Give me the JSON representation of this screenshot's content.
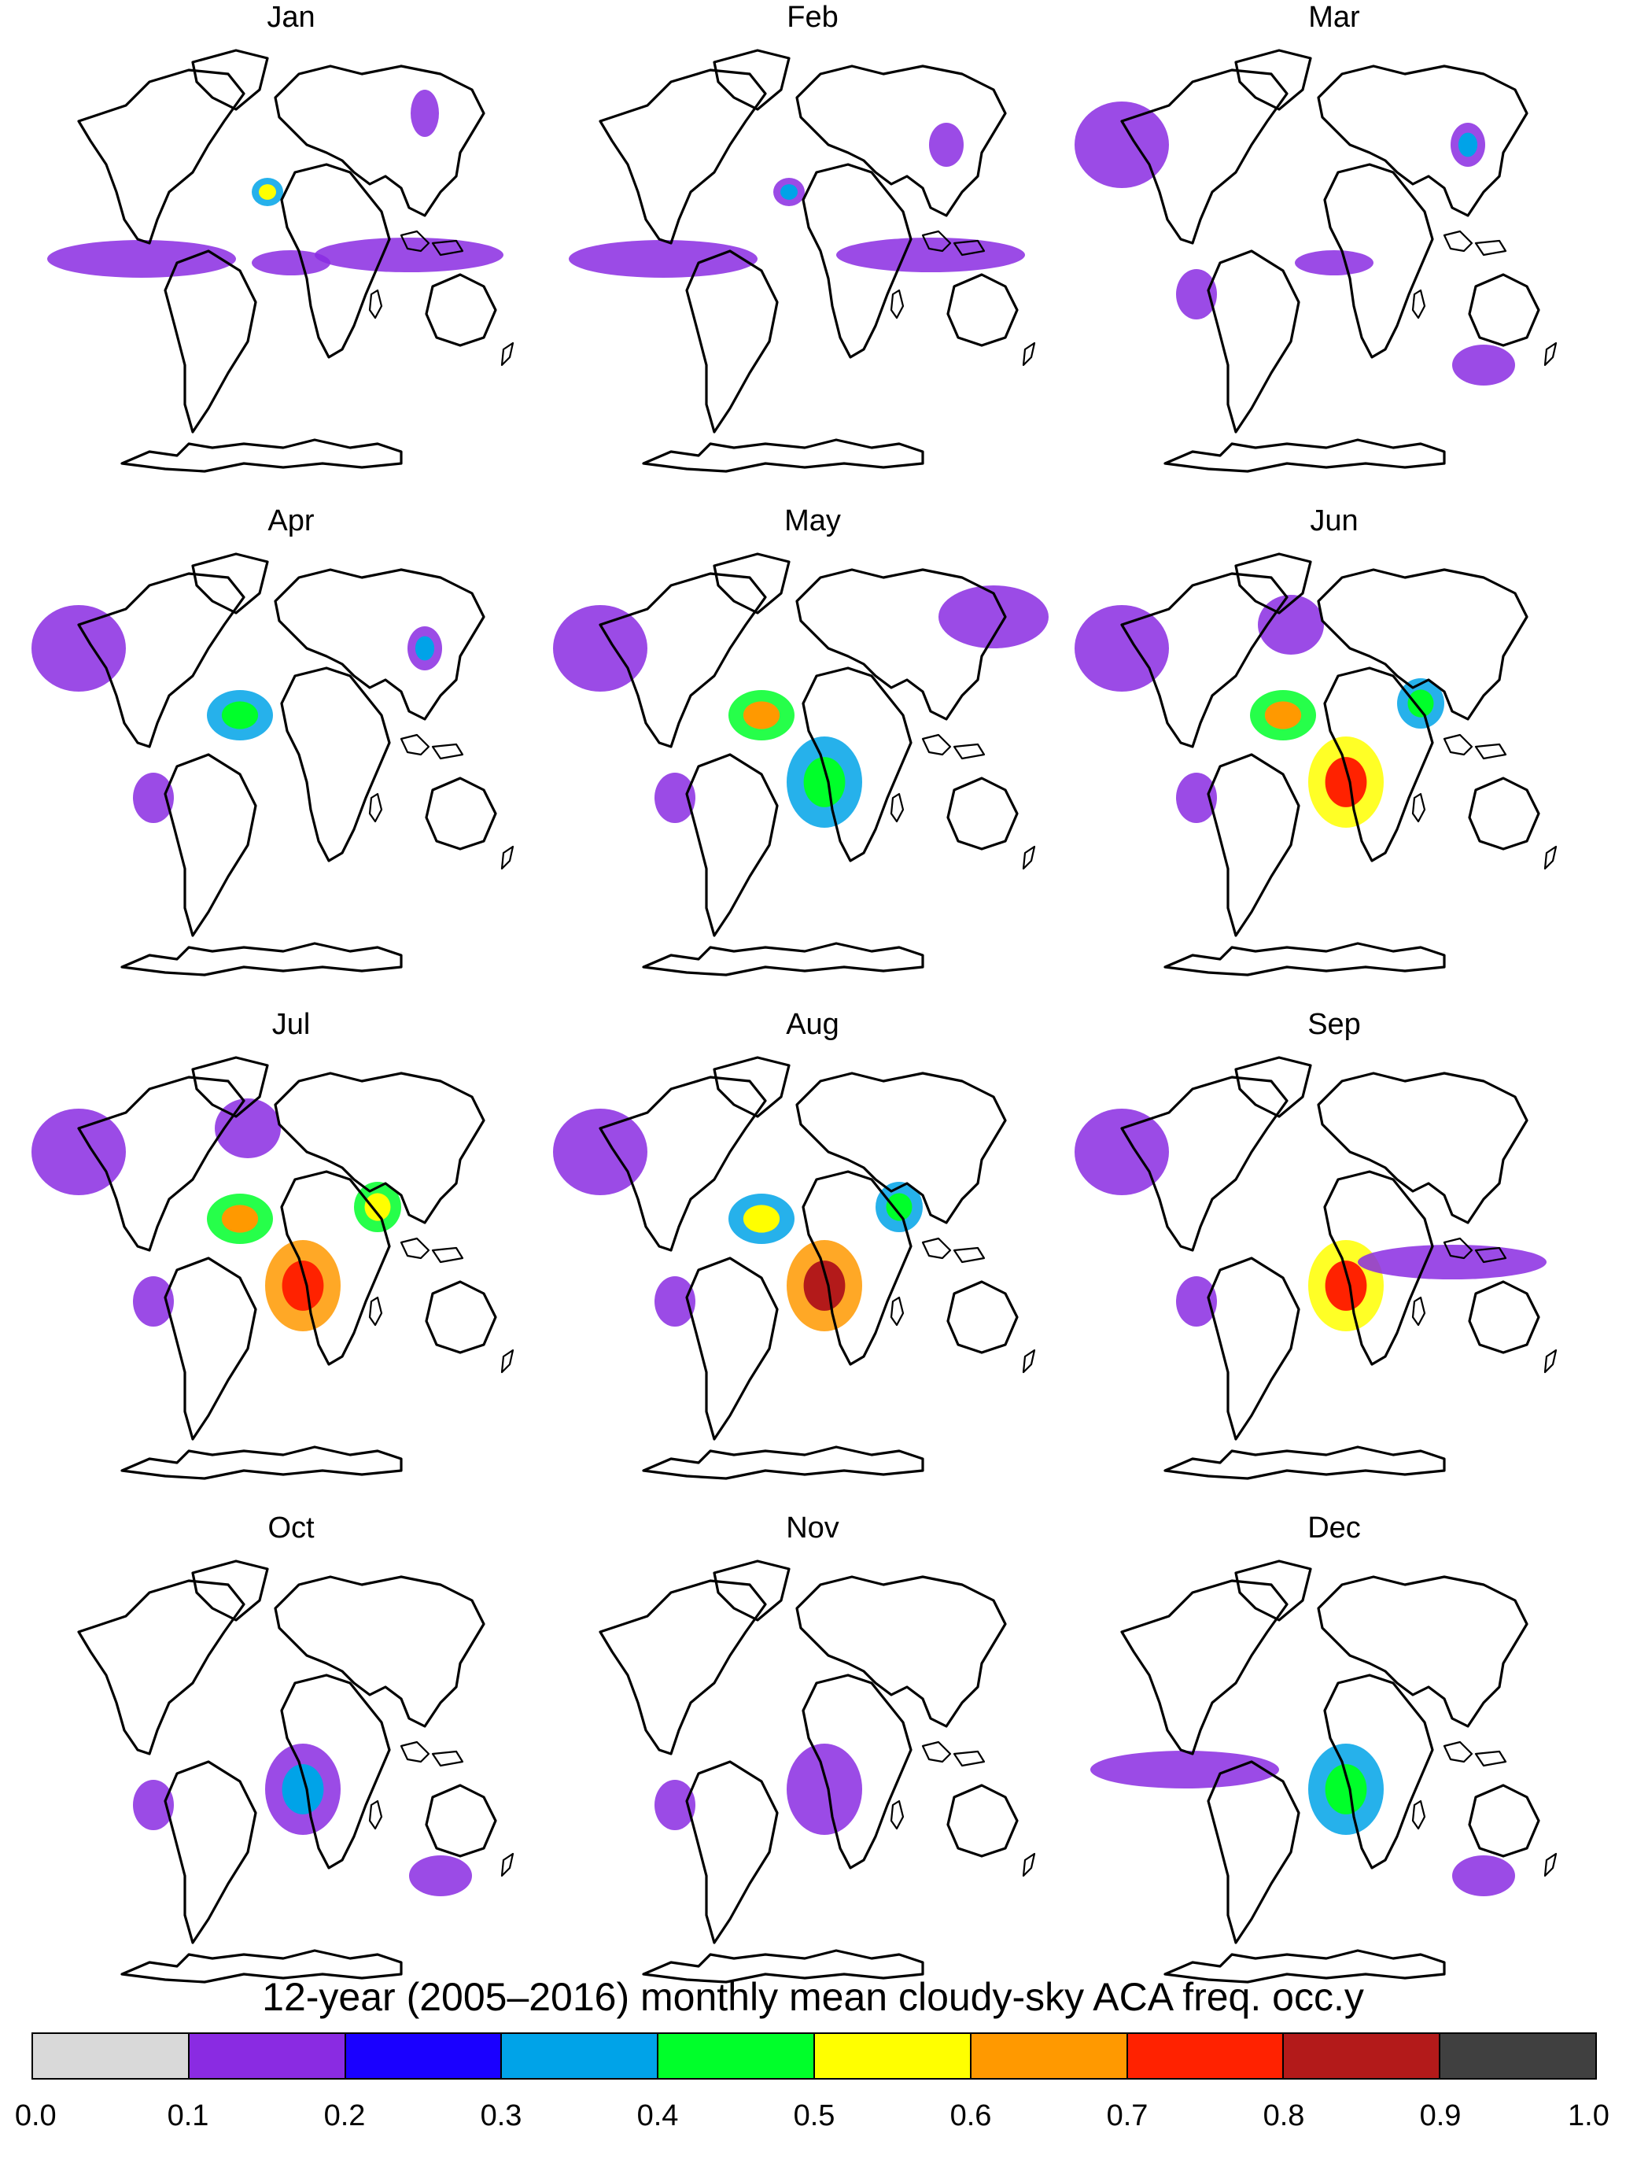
{
  "figure": {
    "title": "12-year (2005–2016) monthly mean cloudy-sky ACA freq. occ.y"
  },
  "colorbar": {
    "ticks": [
      "0.0",
      "0.1",
      "0.2",
      "0.3",
      "0.4",
      "0.5",
      "0.6",
      "0.7",
      "0.8",
      "0.9",
      "1.0"
    ],
    "colors": [
      "#d9d9d9",
      "#8a2be2",
      "#1a00ff",
      "#00a3e8",
      "#00ff2a",
      "#ffff00",
      "#ff9900",
      "#ff2200",
      "#b31a1a",
      "#404040"
    ]
  },
  "panels": [
    {
      "label": "Jan",
      "regions": [
        {
          "name": "south pacific band",
          "level": 0.15
        },
        {
          "name": "southern indian ocean",
          "level": 0.15
        },
        {
          "name": "south atlantic",
          "level": 0.15
        },
        {
          "name": "gulf of guinea",
          "level": 0.5
        },
        {
          "name": "south china",
          "level": 0.15
        }
      ]
    },
    {
      "label": "Feb",
      "regions": [
        {
          "name": "south pacific band",
          "level": 0.15
        },
        {
          "name": "southern indian ocean",
          "level": 0.15
        },
        {
          "name": "east china",
          "level": 0.25
        },
        {
          "name": "gulf of guinea",
          "level": 0.35
        }
      ]
    },
    {
      "label": "Mar",
      "regions": [
        {
          "name": "north pacific",
          "level": 0.15
        },
        {
          "name": "east china",
          "level": 0.3
        },
        {
          "name": "south atlantic",
          "level": 0.15
        },
        {
          "name": "south america west",
          "level": 0.2
        },
        {
          "name": "south of australia",
          "level": 0.15
        }
      ]
    },
    {
      "label": "Apr",
      "regions": [
        {
          "name": "north pacific",
          "level": 0.18
        },
        {
          "name": "east china",
          "level": 0.3
        },
        {
          "name": "tropical atlantic",
          "level": 0.45
        },
        {
          "name": "south america west",
          "level": 0.15
        }
      ]
    },
    {
      "label": "May",
      "regions": [
        {
          "name": "north pacific",
          "level": 0.18
        },
        {
          "name": "east asia",
          "level": 0.15
        },
        {
          "name": "tropical atlantic",
          "level": 0.6
        },
        {
          "name": "southeast atlantic",
          "level": 0.45
        },
        {
          "name": "south america west",
          "level": 0.2
        }
      ]
    },
    {
      "label": "Jun",
      "regions": [
        {
          "name": "north pacific",
          "level": 0.18
        },
        {
          "name": "north atlantic",
          "level": 0.15
        },
        {
          "name": "tropical atlantic",
          "level": 0.6
        },
        {
          "name": "southeast atlantic",
          "level": 0.7
        },
        {
          "name": "arabian sea",
          "level": 0.45
        },
        {
          "name": "south america west",
          "level": 0.2
        }
      ]
    },
    {
      "label": "Jul",
      "regions": [
        {
          "name": "north pacific",
          "level": 0.15
        },
        {
          "name": "north atlantic",
          "level": 0.15
        },
        {
          "name": "tropical atlantic",
          "level": 0.6
        },
        {
          "name": "southeast atlantic",
          "level": 0.75
        },
        {
          "name": "arabian sea",
          "level": 0.55
        },
        {
          "name": "south america west",
          "level": 0.25
        }
      ]
    },
    {
      "label": "Aug",
      "regions": [
        {
          "name": "north pacific",
          "level": 0.15
        },
        {
          "name": "tropical atlantic",
          "level": 0.5
        },
        {
          "name": "southeast atlantic",
          "level": 0.8
        },
        {
          "name": "arabian sea",
          "level": 0.45
        },
        {
          "name": "south america west",
          "level": 0.2
        }
      ]
    },
    {
      "label": "Sep",
      "regions": [
        {
          "name": "north pacific",
          "level": 0.15
        },
        {
          "name": "southeast atlantic",
          "level": 0.7
        },
        {
          "name": "southern indian ocean",
          "level": 0.2
        },
        {
          "name": "south america west",
          "level": 0.2
        }
      ]
    },
    {
      "label": "Oct",
      "regions": [
        {
          "name": "southeast atlantic",
          "level": 0.3
        },
        {
          "name": "south america west",
          "level": 0.2
        },
        {
          "name": "south of australia",
          "level": 0.2
        }
      ]
    },
    {
      "label": "Nov",
      "regions": [
        {
          "name": "southeast atlantic",
          "level": 0.25
        },
        {
          "name": "south america west",
          "level": 0.12
        }
      ]
    },
    {
      "label": "Dec",
      "regions": [
        {
          "name": "southeast atlantic",
          "level": 0.45
        },
        {
          "name": "south pacific band",
          "level": 0.12
        },
        {
          "name": "south of australia",
          "level": 0.15
        }
      ]
    }
  ]
}
